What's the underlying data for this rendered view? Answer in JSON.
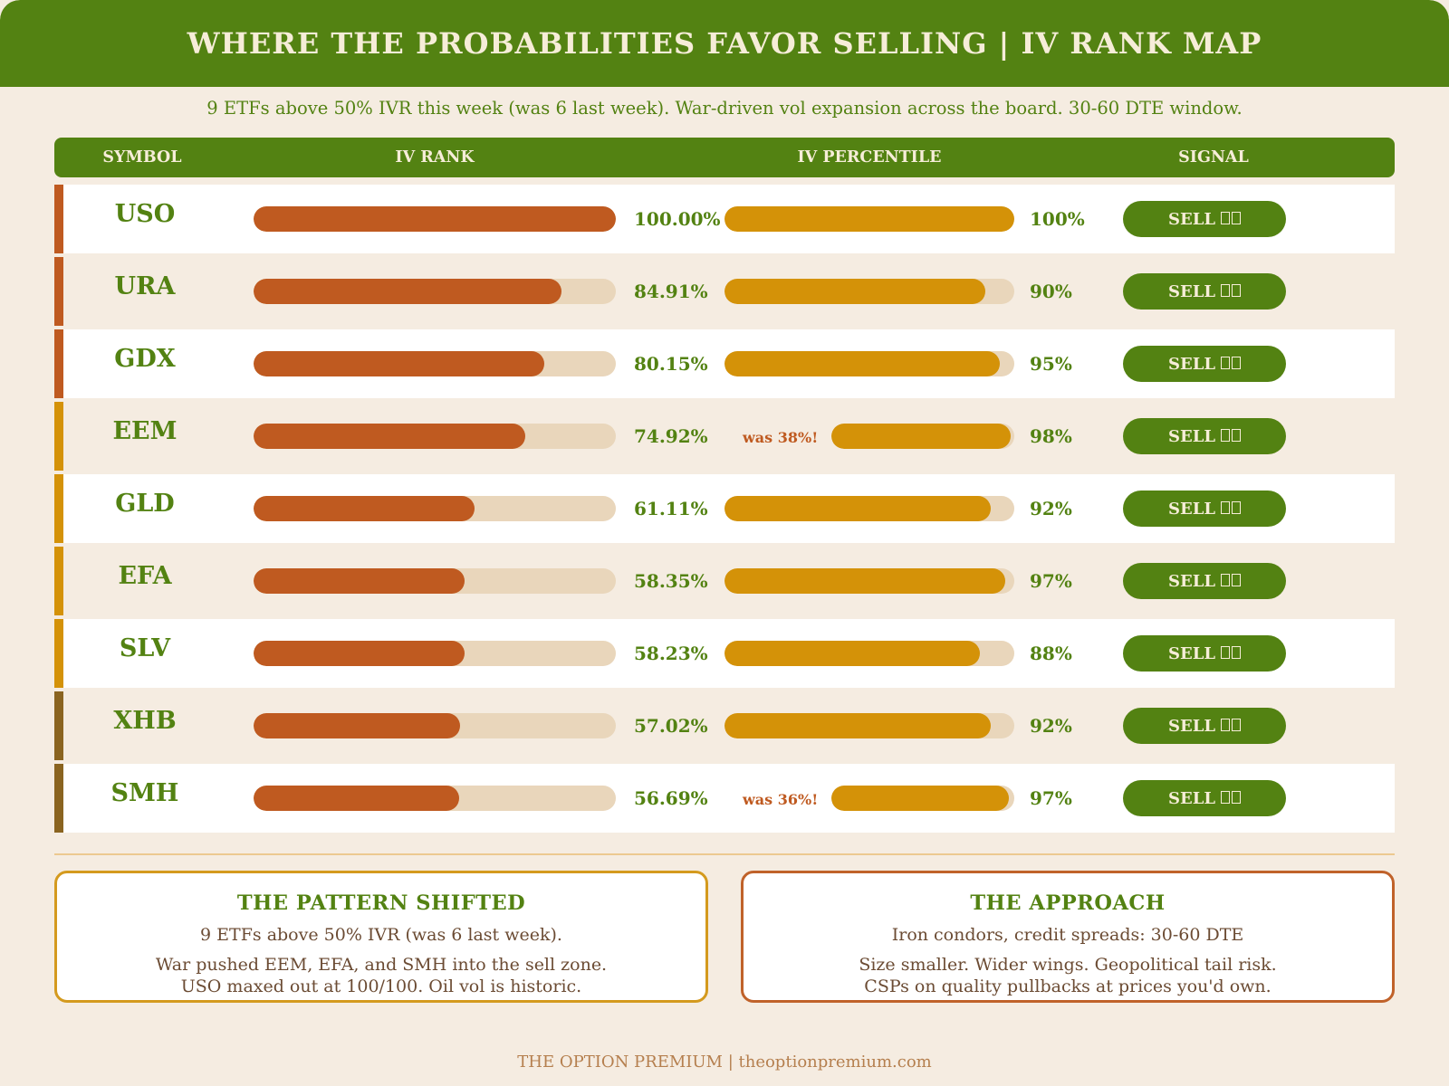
{
  "title": "WHERE THE PROBABILITIES FAVOR SELLING | IV RANK MAP",
  "subtitle": "9 ETFs above 50% IVR this week (was 6 last week). War-driven vol expansion across the board. 30-60 DTE window.",
  "columns": {
    "symbol": "SYMBOL",
    "iv_rank": "IV RANK",
    "iv_percentile": "IV PERCENTILE",
    "signal": "SIGNAL"
  },
  "colors": {
    "brand_green": "#538212",
    "rank_bar": "#bf5a20",
    "percentile_bar": "#d49208",
    "bar_track": "#e9d6bb",
    "accent_tier_1": "#bf5a20",
    "accent_tier_2": "#d49208",
    "accent_tier_3": "#8a6420"
  },
  "chart_data": {
    "type": "bar",
    "orientation": "horizontal",
    "categories": [
      "USO",
      "URA",
      "GDX",
      "EEM",
      "GLD",
      "EFA",
      "SLV",
      "XHB",
      "SMH"
    ],
    "series": [
      {
        "name": "IV RANK",
        "values": [
          100.0,
          84.91,
          80.15,
          74.92,
          61.11,
          58.35,
          58.23,
          57.02,
          56.69
        ],
        "labels": [
          "100.00%",
          "84.91%",
          "80.15%",
          "74.92%",
          "61.11%",
          "58.35%",
          "58.23%",
          "57.02%",
          "56.69%"
        ]
      },
      {
        "name": "IV PERCENTILE",
        "values": [
          100,
          90,
          95,
          98,
          92,
          97,
          88,
          92,
          97
        ],
        "labels": [
          "100%",
          "90%",
          "95%",
          "98%",
          "92%",
          "97%",
          "88%",
          "92%",
          "97%"
        ]
      }
    ],
    "xlim": [
      0,
      100
    ],
    "annotations": [
      "",
      "",
      "",
      "was 38%!",
      "",
      "",
      "",
      "",
      "was 36%!"
    ],
    "signals": [
      "SELL",
      "SELL",
      "SELL",
      "SELL",
      "SELL",
      "SELL",
      "SELL",
      "SELL",
      "SELL"
    ],
    "signal_icon": "tofu-glyph-placeholder",
    "accent_tiers": [
      1,
      1,
      1,
      2,
      2,
      2,
      2,
      3,
      3
    ]
  },
  "pattern_box": {
    "heading": "THE PATTERN SHIFTED",
    "line1": "9 ETFs above 50% IVR (was 6 last week).",
    "line2": "War pushed EEM, EFA, and SMH into the sell zone.",
    "line3": "USO maxed out at 100/100. Oil vol is historic."
  },
  "approach_box": {
    "heading": "THE APPROACH",
    "line1": "Iron condors, credit spreads: 30-60 DTE",
    "line2": "Size smaller. Wider wings. Geopolitical tail risk.",
    "line3": "CSPs on quality pullbacks at prices you'd own."
  },
  "footer": "THE OPTION PREMIUM | theoptionpremium.com"
}
